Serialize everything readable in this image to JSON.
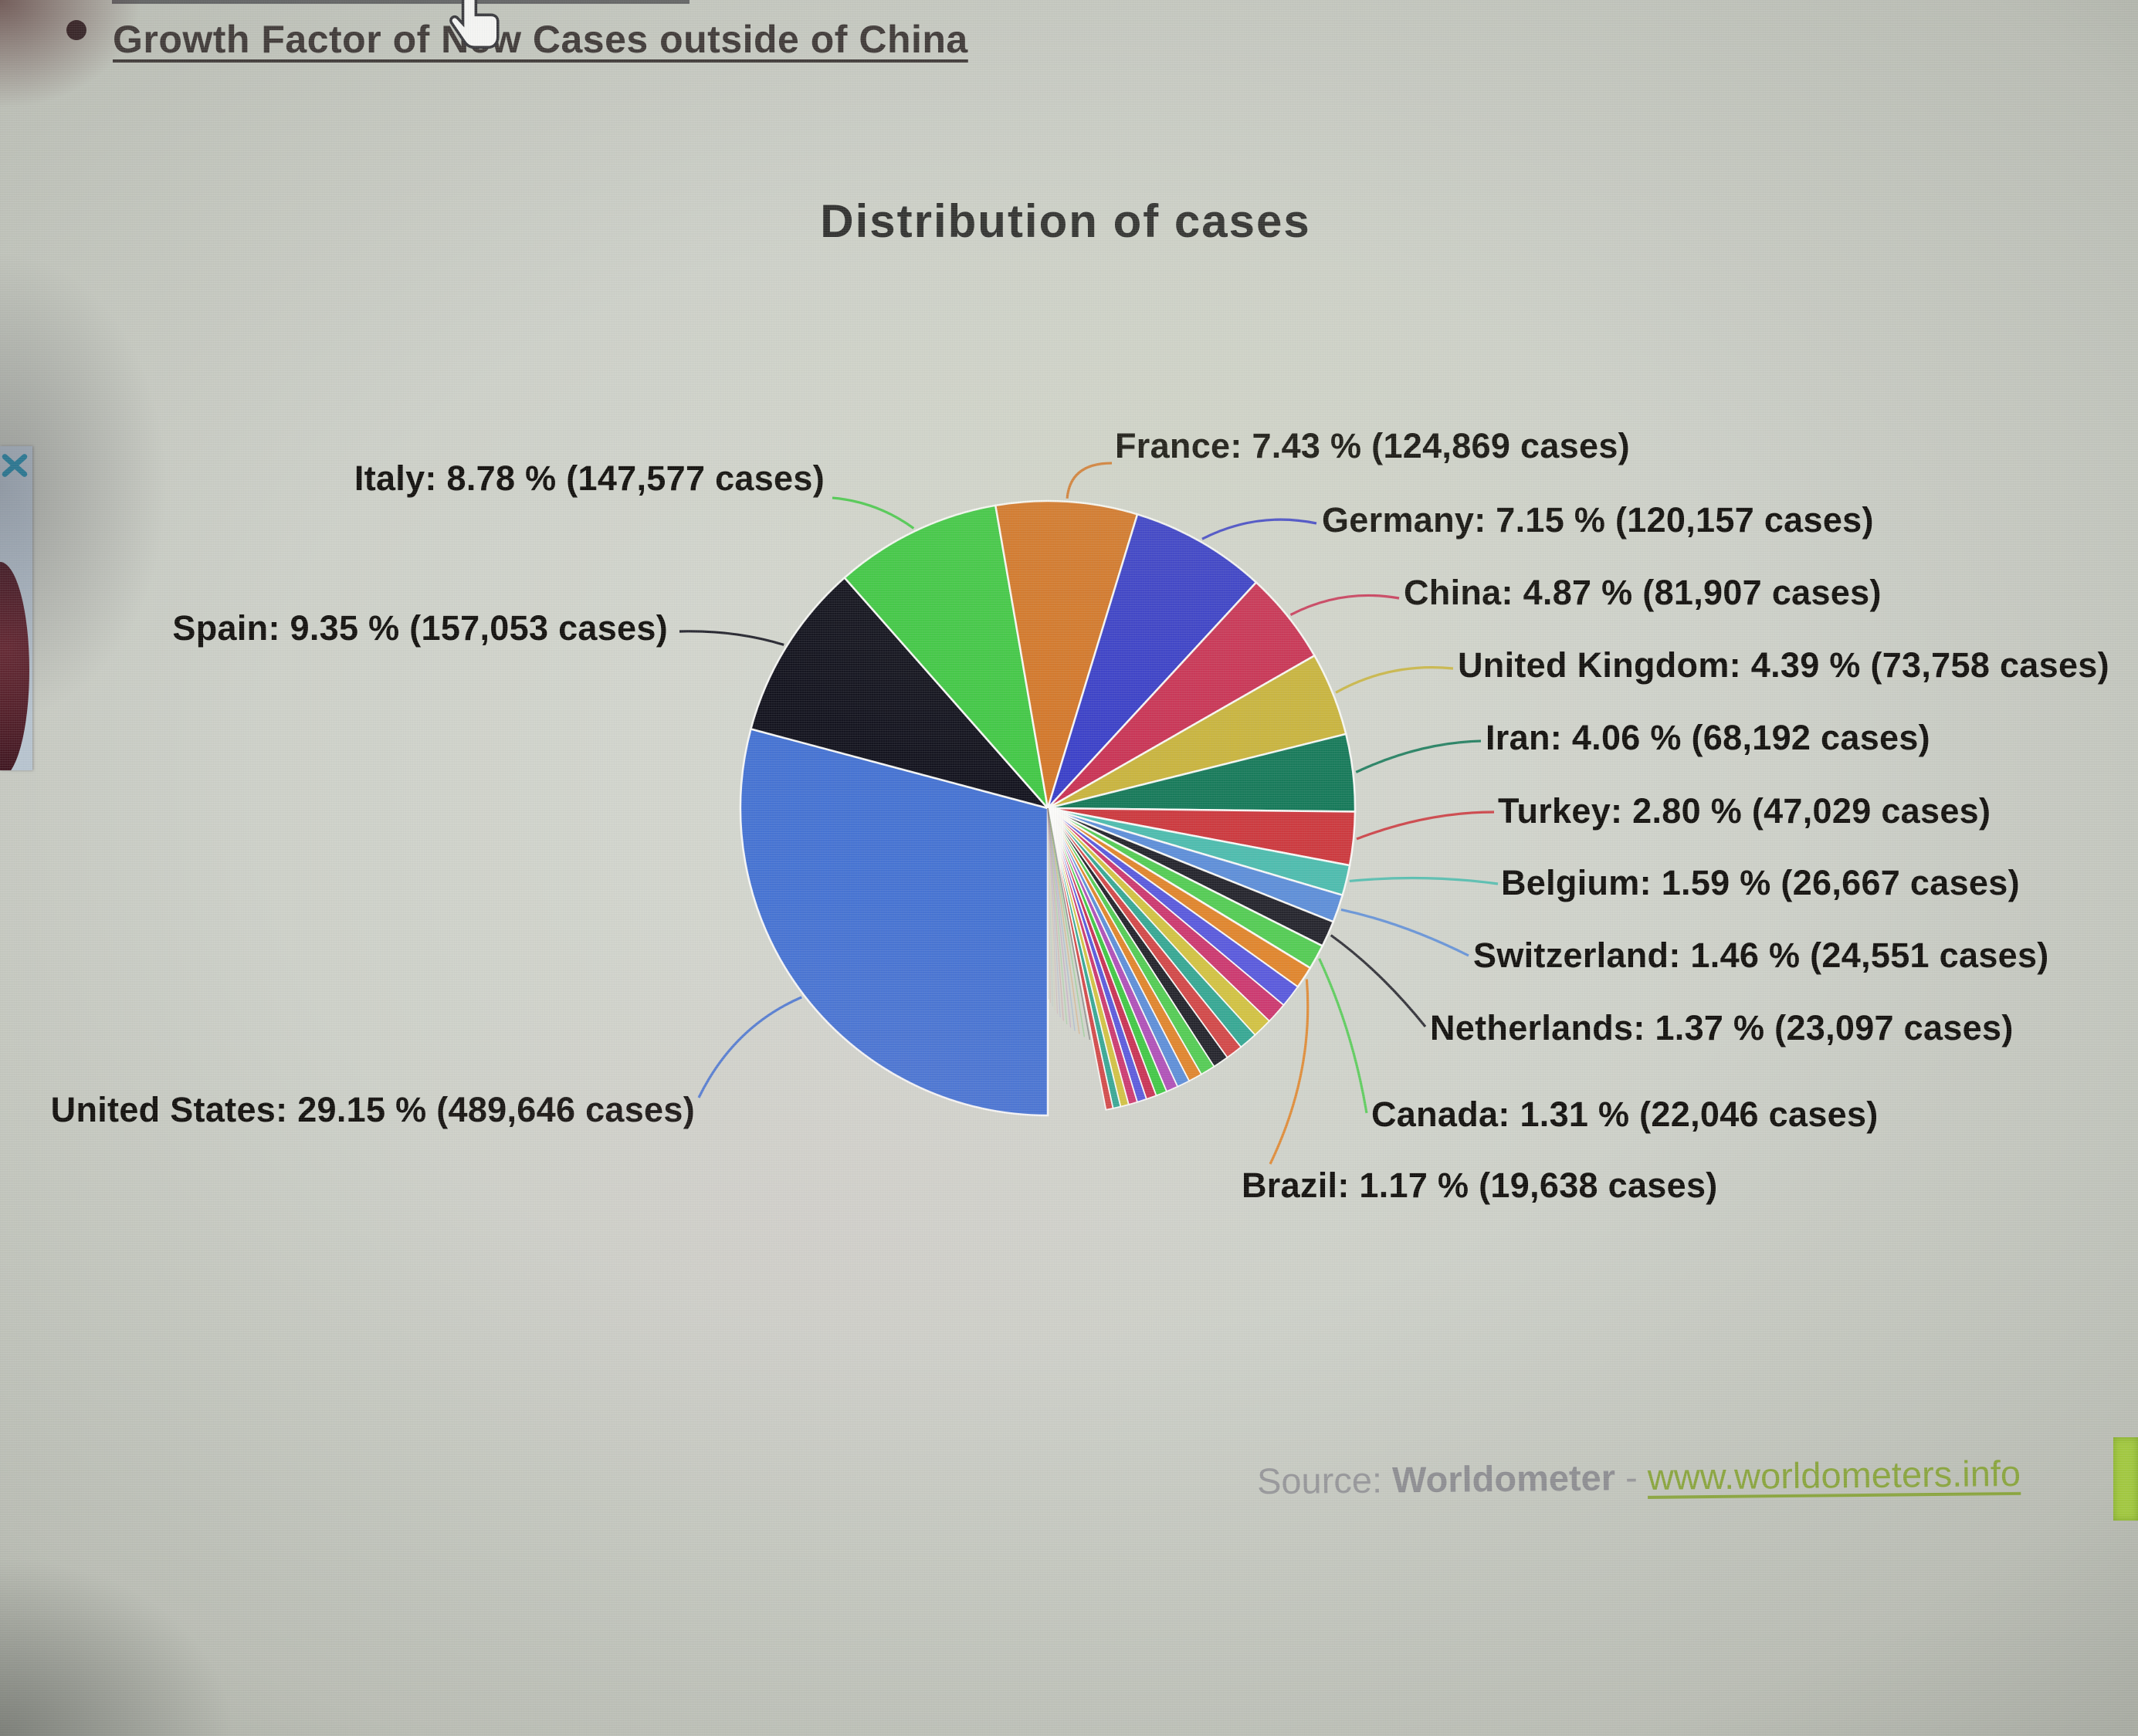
{
  "page": {
    "top_link": {
      "text": "Growth Factor of New Cases outside of China"
    },
    "source": {
      "prefix": "Source: ",
      "brand": "Worldometer",
      "separator": " - ",
      "link": "www.worldometers.info"
    },
    "icons": {
      "hand_cursor": "hand-pointer",
      "thumbnail_close": "x-close"
    }
  },
  "chart_data": {
    "type": "pie",
    "title": "Distribution of cases",
    "start_angle_deg_clockwise_from_12": 180,
    "direction": "clockwise",
    "legend_position": "callout-labels",
    "slices": [
      {
        "label": "United States",
        "percent": 29.15,
        "cases": 489646,
        "cases_text": "489,646",
        "label_text": "United States: 29.15 % (489,646 cases)",
        "color": "#4673d2",
        "label_side": "left"
      },
      {
        "label": "Spain",
        "percent": 9.35,
        "cases": 157053,
        "cases_text": "157,053",
        "label_text": "Spain: 9.35 % (157,053 cases)",
        "color": "#14141f",
        "label_side": "left"
      },
      {
        "label": "Italy",
        "percent": 8.78,
        "cases": 147577,
        "cases_text": "147,577",
        "label_text": "Italy: 8.78 % (147,577 cases)",
        "color": "#42c846",
        "label_side": "left"
      },
      {
        "label": "France",
        "percent": 7.43,
        "cases": 124869,
        "cases_text": "124,869",
        "label_text": "France: 7.43 % (124,869 cases)",
        "color": "#d3772a",
        "label_side": "right"
      },
      {
        "label": "Germany",
        "percent": 7.15,
        "cases": 120157,
        "cases_text": "120,157",
        "label_text": "Germany: 7.15 % (120,157 cases)",
        "color": "#3a3fc8",
        "label_side": "right"
      },
      {
        "label": "China",
        "percent": 4.87,
        "cases": 81907,
        "cases_text": "81,907",
        "label_text": "China: 4.87 % (81,907 cases)",
        "color": "#c93355",
        "label_side": "right"
      },
      {
        "label": "United Kingdom",
        "percent": 4.39,
        "cases": 73758,
        "cases_text": "73,758",
        "label_text": "United Kingdom: 4.39 % (73,758 cases)",
        "color": "#c9b43e",
        "label_side": "right"
      },
      {
        "label": "Iran",
        "percent": 4.06,
        "cases": 68192,
        "cases_text": "68,192",
        "label_text": "Iran: 4.06 % (68,192 cases)",
        "color": "#177a5a",
        "label_side": "right"
      },
      {
        "label": "Turkey",
        "percent": 2.8,
        "cases": 47029,
        "cases_text": "47,029",
        "label_text": "Turkey: 2.80 % (47,029 cases)",
        "color": "#cc3a3f",
        "label_side": "right"
      },
      {
        "label": "Belgium",
        "percent": 1.59,
        "cases": 26667,
        "cases_text": "26,667",
        "label_text": "Belgium: 1.59 % (26,667 cases)",
        "color": "#4fbcae",
        "label_side": "right"
      },
      {
        "label": "Switzerland",
        "percent": 1.46,
        "cases": 24551,
        "cases_text": "24,551",
        "label_text": "Switzerland: 1.46 % (24,551 cases)",
        "color": "#5f8fd8",
        "label_side": "right"
      },
      {
        "label": "Netherlands",
        "percent": 1.37,
        "cases": 23097,
        "cases_text": "23,097",
        "label_text": "Netherlands: 1.37 % (23,097 cases)",
        "color": "#26262e",
        "label_side": "right"
      },
      {
        "label": "Canada",
        "percent": 1.31,
        "cases": 22046,
        "cases_text": "22,046",
        "label_text": "Canada: 1.31 % (22,046 cases)",
        "color": "#55cc55",
        "label_side": "right"
      },
      {
        "label": "Brazil",
        "percent": 1.17,
        "cases": 19638,
        "cases_text": "19,638",
        "label_text": "Brazil: 1.17 % (19,638 cases)",
        "color": "#e0862e",
        "label_side": "right"
      },
      {
        "label": "Others (unlabeled small slices)",
        "percent": 15.12,
        "is_others_fan": true,
        "fan_palette": [
          "#5b5bdc",
          "#cc3a70",
          "#d2c244",
          "#38a894",
          "#d24a4a",
          "#26262e",
          "#55cc55",
          "#e0862e",
          "#5f8fd8",
          "#b052b8",
          "#42c846",
          "#c93355"
        ]
      }
    ]
  }
}
